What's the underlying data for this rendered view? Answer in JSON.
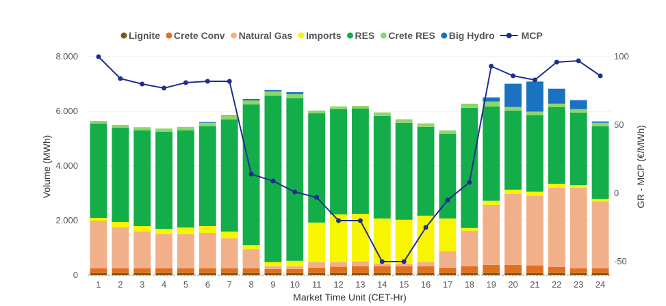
{
  "chart_data": {
    "type": "bar",
    "stacked": true,
    "categories": [
      "1",
      "2",
      "3",
      "4",
      "5",
      "6",
      "7",
      "8",
      "9",
      "10",
      "11",
      "12",
      "13",
      "14",
      "15",
      "16",
      "17",
      "18",
      "19",
      "20",
      "21",
      "22",
      "23",
      "24"
    ],
    "series": [
      {
        "name": "Lignite",
        "color": "#7a5a17",
        "values": [
          80,
          80,
          80,
          80,
          80,
          80,
          80,
          80,
          80,
          80,
          80,
          80,
          80,
          80,
          80,
          80,
          80,
          80,
          80,
          80,
          80,
          80,
          80,
          80
        ]
      },
      {
        "name": "Crete Conv",
        "color": "#e07020",
        "values": [
          170,
          170,
          170,
          170,
          170,
          170,
          170,
          170,
          150,
          150,
          200,
          230,
          250,
          250,
          250,
          250,
          200,
          250,
          300,
          300,
          280,
          220,
          170,
          170
        ]
      },
      {
        "name": "Natural Gas",
        "color": "#f2b08a",
        "values": [
          1750,
          1500,
          1350,
          1250,
          1250,
          1300,
          1100,
          700,
          100,
          100,
          200,
          170,
          170,
          100,
          100,
          150,
          600,
          1300,
          2200,
          2600,
          2550,
          2900,
          2950,
          2450
        ]
      },
      {
        "name": "Imports",
        "color": "#f7f500",
        "values": [
          100,
          200,
          200,
          200,
          250,
          250,
          250,
          150,
          150,
          200,
          1450,
          1750,
          1750,
          1650,
          1600,
          1700,
          1200,
          100,
          150,
          150,
          150,
          150,
          100,
          100
        ]
      },
      {
        "name": "RES",
        "color": "#13ad4a",
        "values": [
          3450,
          3450,
          3500,
          3550,
          3550,
          3650,
          4100,
          5150,
          6100,
          5950,
          4000,
          3850,
          3850,
          3750,
          3550,
          3250,
          3100,
          4400,
          3450,
          2900,
          2800,
          2800,
          2650,
          2650
        ]
      },
      {
        "name": "Crete RES",
        "color": "#8ed66a",
        "values": [
          100,
          100,
          120,
          120,
          130,
          130,
          130,
          150,
          150,
          150,
          100,
          100,
          100,
          130,
          130,
          130,
          120,
          150,
          180,
          130,
          130,
          130,
          130,
          130
        ]
      },
      {
        "name": "Big Hydro",
        "color": "#1a72c0",
        "values": [
          0,
          0,
          0,
          0,
          0,
          30,
          20,
          50,
          50,
          70,
          0,
          0,
          0,
          0,
          0,
          0,
          0,
          0,
          150,
          850,
          1100,
          550,
          330,
          50
        ]
      }
    ],
    "line_series": {
      "name": "MCP",
      "color": "#1f2d8e",
      "axis": "right",
      "values": [
        100,
        84,
        80,
        77,
        81,
        82,
        82,
        14,
        9,
        1,
        -3,
        -20,
        -20,
        -50,
        -50,
        -25,
        -5,
        8,
        93,
        86,
        83,
        96,
        97,
        86
      ]
    },
    "xlabel": "Market Time Unit (CET-Hr)",
    "ylabel": "Volume (MWh)",
    "y2label": "GR - MCP (€/MWh)",
    "ylim": [
      0,
      8000
    ],
    "y2lim": [
      -60,
      100
    ],
    "yticks": [
      0,
      2000,
      4000,
      6000,
      8000
    ],
    "ytick_labels": [
      "0",
      "2.000",
      "4.000",
      "6.000",
      "8.000"
    ],
    "y2ticks": [
      -50,
      0,
      50,
      100
    ],
    "y2tick_labels": [
      "-50",
      "0",
      "50",
      "100"
    ],
    "legend_position": "top-center",
    "grid": true
  }
}
